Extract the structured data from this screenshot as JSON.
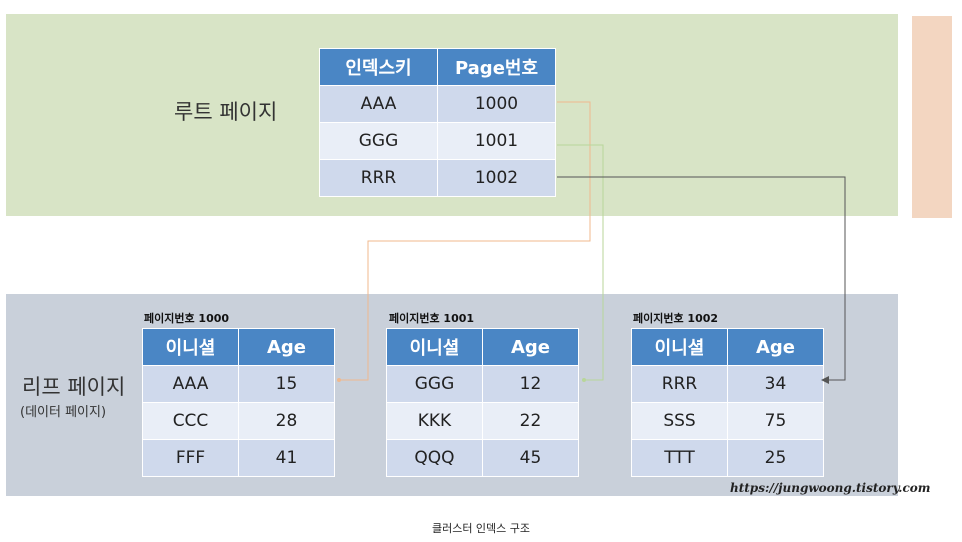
{
  "root": {
    "label": "루트 페이지",
    "headers": [
      "인덱스키",
      "Page번호"
    ],
    "rows": [
      [
        "AAA",
        "1000"
      ],
      [
        "GGG",
        "1001"
      ],
      [
        "RRR",
        "1002"
      ]
    ]
  },
  "leaf": {
    "label": "리프 페이지",
    "sublabel": "(데이터 페이지)",
    "pages": [
      {
        "caption": "페이지번호 1000",
        "headers": [
          "이니셜",
          "Age"
        ],
        "rows": [
          [
            "AAA",
            "15"
          ],
          [
            "CCC",
            "28"
          ],
          [
            "FFF",
            "41"
          ]
        ]
      },
      {
        "caption": "페이지번호 1001",
        "headers": [
          "이니셜",
          "Age"
        ],
        "rows": [
          [
            "GGG",
            "12"
          ],
          [
            "KKK",
            "22"
          ],
          [
            "QQQ",
            "45"
          ]
        ]
      },
      {
        "caption": "페이지번호 1002",
        "headers": [
          "이니셜",
          "Age"
        ],
        "rows": [
          [
            "RRR",
            "34"
          ],
          [
            "SSS",
            "75"
          ],
          [
            "TTT",
            "25"
          ]
        ]
      }
    ]
  },
  "colors": {
    "root_band": "#d8e4c6",
    "leaf_band": "#c9d0da",
    "header": "#4a86c5",
    "link_1000": "#f0b98e",
    "link_1001": "#b8d69a",
    "link_1002": "#555555"
  },
  "watermark": "https://jungwoong.tistory.com",
  "caption": "클러스터 인덱스 구조"
}
